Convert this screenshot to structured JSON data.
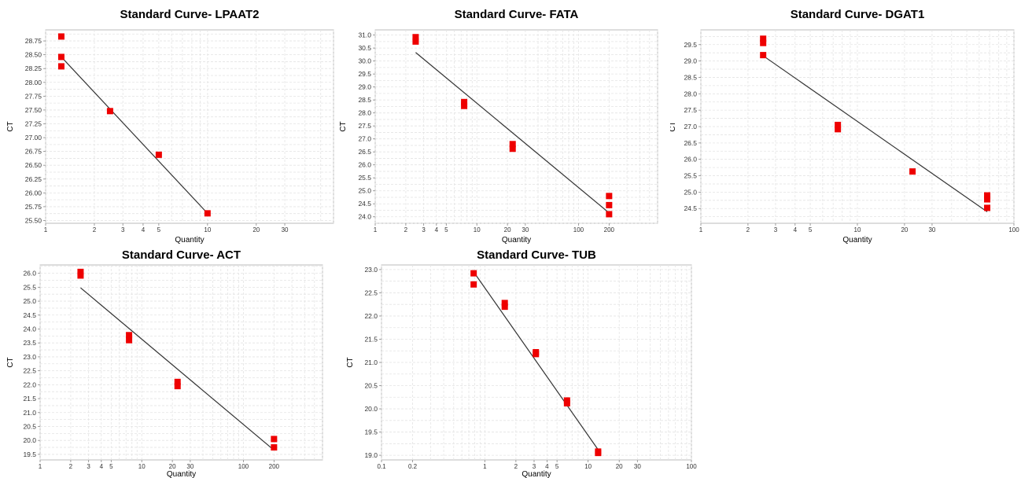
{
  "chart_data": [
    {
      "type": "scatter",
      "title": "Standard Curve- LPAAT2",
      "xlabel": "Quantity",
      "ylabel": "CT",
      "xscale": "log",
      "xlim": [
        1,
        60
      ],
      "ylim": [
        25.45,
        28.95
      ],
      "x_ticks": [
        1,
        2,
        3,
        4,
        5,
        10,
        20,
        30
      ],
      "x_tick_labels": [
        "1",
        "2",
        "3",
        "4",
        "5",
        "10",
        "20",
        "30"
      ],
      "y_ticks": [
        25.5,
        25.75,
        26.0,
        26.25,
        26.5,
        26.75,
        27.0,
        27.25,
        27.5,
        27.75,
        28.0,
        28.25,
        28.5,
        28.75
      ],
      "y_tick_labels": [
        "25.50",
        "25.75",
        "26.00",
        "26.25",
        "26.50",
        "26.75",
        "27.00",
        "27.25",
        "27.50",
        "27.75",
        "28.00",
        "28.25",
        "28.50",
        "28.75"
      ],
      "points": [
        {
          "x": 1.25,
          "y": 28.83
        },
        {
          "x": 1.25,
          "y": 28.46
        },
        {
          "x": 1.25,
          "y": 28.29
        },
        {
          "x": 2.5,
          "y": 27.48
        },
        {
          "x": 5,
          "y": 26.69
        },
        {
          "x": 10,
          "y": 25.63
        }
      ],
      "fit_line": {
        "x": [
          1.25,
          10
        ],
        "y": [
          28.46,
          25.63
        ]
      },
      "grid": true,
      "marker_color": "#ee0000",
      "line_color": "#333333"
    },
    {
      "type": "scatter",
      "title": "Standard Curve- FATA",
      "xlabel": "Quantity",
      "ylabel": "CT",
      "xscale": "log",
      "xlim": [
        1,
        600
      ],
      "ylim": [
        23.75,
        31.2
      ],
      "x_ticks": [
        1,
        2,
        3,
        4,
        5,
        10,
        20,
        30,
        100,
        200
      ],
      "x_tick_labels": [
        "1",
        "2",
        "3",
        "4",
        "5",
        "10",
        "20",
        "30",
        "100",
        "200"
      ],
      "y_ticks": [
        24.0,
        24.5,
        25.0,
        25.5,
        26.0,
        26.5,
        27.0,
        27.5,
        28.0,
        28.5,
        29.0,
        29.5,
        30.0,
        30.5,
        31.0
      ],
      "y_tick_labels": [
        "24.0",
        "24.5",
        "25.0",
        "25.5",
        "26.0",
        "26.5",
        "27.0",
        "27.5",
        "28.0",
        "28.5",
        "29.0",
        "29.5",
        "30.0",
        "30.5",
        "31.0"
      ],
      "points": [
        {
          "x": 2.5,
          "y": 30.92
        },
        {
          "x": 2.5,
          "y": 30.75
        },
        {
          "x": 7.5,
          "y": 28.42
        },
        {
          "x": 7.5,
          "y": 28.27
        },
        {
          "x": 22.5,
          "y": 26.8
        },
        {
          "x": 22.5,
          "y": 26.62
        },
        {
          "x": 200,
          "y": 24.8
        },
        {
          "x": 200,
          "y": 24.45
        },
        {
          "x": 200,
          "y": 24.1
        }
      ],
      "fit_line": {
        "x": [
          2.5,
          200
        ],
        "y": [
          30.33,
          24.15
        ]
      },
      "grid": true,
      "marker_color": "#ee0000",
      "line_color": "#333333"
    },
    {
      "type": "scatter",
      "title": "Standard Curve- DGAT1",
      "xlabel": "Quantity",
      "ylabel": "CT",
      "xscale": "log",
      "xlim": [
        1,
        100
      ],
      "ylim": [
        24.05,
        29.95
      ],
      "x_ticks": [
        1,
        2,
        3,
        4,
        5,
        10,
        20,
        30,
        100
      ],
      "x_tick_labels": [
        "1",
        "2",
        "3",
        "4",
        "5",
        "10",
        "20",
        "30",
        "100"
      ],
      "y_ticks": [
        24.5,
        25.0,
        25.5,
        26.0,
        26.5,
        27.0,
        27.5,
        28.0,
        28.5,
        29.0,
        29.5
      ],
      "y_tick_labels": [
        "24.5",
        "25.0",
        "25.5",
        "26.0",
        "26.5",
        "27.0",
        "27.5",
        "28.0",
        "28.5",
        "29.0",
        "29.5"
      ],
      "points": [
        {
          "x": 2.5,
          "y": 29.68
        },
        {
          "x": 2.5,
          "y": 29.55
        },
        {
          "x": 2.5,
          "y": 29.18
        },
        {
          "x": 7.5,
          "y": 27.05
        },
        {
          "x": 7.5,
          "y": 26.92
        },
        {
          "x": 22.5,
          "y": 25.63
        },
        {
          "x": 67.5,
          "y": 24.9
        },
        {
          "x": 67.5,
          "y": 24.78
        },
        {
          "x": 67.5,
          "y": 24.52
        }
      ],
      "fit_line": {
        "x": [
          2.5,
          67.5
        ],
        "y": [
          29.16,
          24.4
        ]
      },
      "grid": true,
      "marker_color": "#ee0000",
      "line_color": "#333333"
    },
    {
      "type": "scatter",
      "title": "Standard Curve- ACT",
      "xlabel": "Quantity",
      "ylabel": "CT",
      "xscale": "log",
      "xlim": [
        1,
        600
      ],
      "ylim": [
        19.3,
        26.3
      ],
      "x_ticks": [
        1,
        2,
        3,
        4,
        5,
        10,
        20,
        30,
        100,
        200
      ],
      "x_tick_labels": [
        "1",
        "2",
        "3",
        "4",
        "5",
        "10",
        "20",
        "30",
        "100",
        "200"
      ],
      "y_ticks": [
        19.5,
        20.0,
        20.5,
        21.0,
        21.5,
        22.0,
        22.5,
        23.0,
        23.5,
        24.0,
        24.5,
        25.0,
        25.5,
        26.0
      ],
      "y_tick_labels": [
        "19.5",
        "20.0",
        "20.5",
        "21.0",
        "21.5",
        "22.0",
        "22.5",
        "23.0",
        "23.5",
        "24.0",
        "24.5",
        "25.0",
        "25.5",
        "26.0"
      ],
      "points": [
        {
          "x": 2.5,
          "y": 26.05
        },
        {
          "x": 2.5,
          "y": 25.92
        },
        {
          "x": 7.5,
          "y": 23.78
        },
        {
          "x": 7.5,
          "y": 23.6
        },
        {
          "x": 22.5,
          "y": 22.1
        },
        {
          "x": 22.5,
          "y": 21.95
        },
        {
          "x": 200,
          "y": 20.05
        },
        {
          "x": 200,
          "y": 19.75
        }
      ],
      "fit_line": {
        "x": [
          2.5,
          200
        ],
        "y": [
          25.48,
          19.65
        ]
      },
      "grid": true,
      "marker_color": "#ee0000",
      "line_color": "#333333"
    },
    {
      "type": "scatter",
      "title": "Standard Curve- TUB",
      "xlabel": "Quantity",
      "ylabel": "CT",
      "xscale": "log",
      "xlim": [
        0.1,
        100
      ],
      "ylim": [
        18.9,
        23.1
      ],
      "x_ticks": [
        0.1,
        0.2,
        1,
        2,
        3,
        4,
        5,
        10,
        20,
        30,
        100
      ],
      "x_tick_labels": [
        "0.1",
        "0.2",
        "1",
        "2",
        "3",
        "4",
        "5",
        "10",
        "20",
        "30",
        "100"
      ],
      "y_ticks": [
        19.0,
        19.5,
        20.0,
        20.5,
        21.0,
        21.5,
        22.0,
        22.5,
        23.0
      ],
      "y_tick_labels": [
        "19.0",
        "19.5",
        "20.0",
        "20.5",
        "21.0",
        "21.5",
        "22.0",
        "22.5",
        "23.0"
      ],
      "points": [
        {
          "x": 0.78,
          "y": 22.92
        },
        {
          "x": 0.78,
          "y": 22.68
        },
        {
          "x": 1.56,
          "y": 22.28
        },
        {
          "x": 1.56,
          "y": 22.2
        },
        {
          "x": 3.12,
          "y": 21.22
        },
        {
          "x": 3.12,
          "y": 21.18
        },
        {
          "x": 6.25,
          "y": 20.18
        },
        {
          "x": 6.25,
          "y": 20.12
        },
        {
          "x": 12.5,
          "y": 19.08
        },
        {
          "x": 12.5,
          "y": 19.05
        }
      ],
      "fit_line": {
        "x": [
          0.78,
          12.5
        ],
        "y": [
          22.95,
          19.12
        ]
      },
      "grid": true,
      "marker_color": "#ee0000",
      "line_color": "#333333"
    }
  ]
}
